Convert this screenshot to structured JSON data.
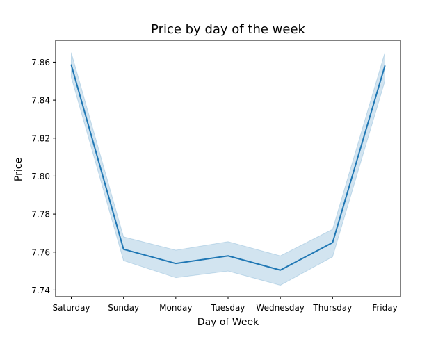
{
  "chart_data": {
    "type": "line",
    "title": "Price by day of the week",
    "xlabel": "Day of Week",
    "ylabel": "Price",
    "categories": [
      "Saturday",
      "Sunday",
      "Monday",
      "Tuesday",
      "Wednesday",
      "Thursday",
      "Friday"
    ],
    "series": [
      {
        "values": [
          7.8585,
          7.7615,
          7.754,
          7.758,
          7.7505,
          7.765,
          7.858
        ],
        "ci_lower": [
          7.852,
          7.7555,
          7.7465,
          7.75,
          7.7425,
          7.7575,
          7.85
        ],
        "ci_upper": [
          7.865,
          7.768,
          7.761,
          7.7655,
          7.758,
          7.772,
          7.865
        ]
      }
    ],
    "ylim": [
      7.7365,
      7.8715
    ],
    "yticks": [
      7.74,
      7.76,
      7.78,
      7.8,
      7.82,
      7.84,
      7.86
    ],
    "ytick_labels": [
      "7.74",
      "7.76",
      "7.78",
      "7.80",
      "7.82",
      "7.84",
      "7.86"
    ],
    "grid": false,
    "legend": "none",
    "colors": {
      "line": "#1f77b4",
      "band": "#1f77b4"
    }
  }
}
